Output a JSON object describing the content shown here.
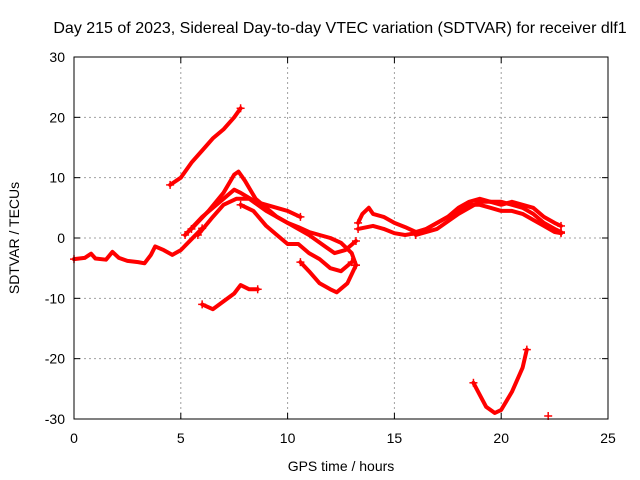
{
  "chart_data": {
    "type": "scatter",
    "title": "Day 215 of 2023, Sidereal Day-to-day VTEC variation (SDTVAR) for receiver dlf1",
    "xlabel": "GPS time / hours",
    "ylabel": "SDTVAR / TECUs",
    "xlim": [
      0,
      25
    ],
    "ylim": [
      -30,
      30
    ],
    "xticks": [
      0,
      5,
      10,
      15,
      20,
      25
    ],
    "xtick_labels": [
      "0",
      "5",
      "10",
      "15",
      "20",
      "25"
    ],
    "yticks": [
      -30,
      -20,
      -10,
      0,
      10,
      20,
      30
    ],
    "ytick_labels": [
      "-30",
      "-20",
      "-10",
      "0",
      "10",
      "20",
      "30"
    ],
    "grid": true,
    "colors": {
      "series": "#ff0000",
      "grid": "#a0a0a0",
      "axis": "#000000"
    },
    "series": [
      {
        "name": "track-baseline",
        "points": [
          [
            0,
            -3.5
          ],
          [
            0.5,
            -3.3
          ],
          [
            0.8,
            -2.6
          ],
          [
            1.0,
            -3.4
          ],
          [
            1.5,
            -3.6
          ],
          [
            1.8,
            -2.3
          ],
          [
            2.1,
            -3.3
          ],
          [
            2.5,
            -3.8
          ],
          [
            3.0,
            -4.0
          ],
          [
            3.3,
            -4.2
          ],
          [
            3.6,
            -2.8
          ],
          [
            3.8,
            -1.4
          ],
          [
            4.2,
            -2.0
          ],
          [
            4.6,
            -2.8
          ],
          [
            5.0,
            -2.0
          ],
          [
            5.5,
            -0.2
          ],
          [
            6.0,
            1.6
          ]
        ]
      },
      {
        "name": "track-upper-a",
        "points": [
          [
            5.2,
            0.5
          ],
          [
            6.0,
            3.5
          ],
          [
            7.0,
            6.5
          ],
          [
            7.5,
            8.0
          ],
          [
            7.8,
            7.5
          ],
          [
            8.5,
            6.0
          ],
          [
            9.0,
            5.5
          ],
          [
            10.0,
            4.5
          ],
          [
            10.6,
            3.5
          ]
        ]
      },
      {
        "name": "track-upper-b",
        "points": [
          [
            5.5,
            1.5
          ],
          [
            6.3,
            4.5
          ],
          [
            7.0,
            7.5
          ],
          [
            7.5,
            10.5
          ],
          [
            7.7,
            11.0
          ],
          [
            8.0,
            9.5
          ],
          [
            8.5,
            6.5
          ],
          [
            9.0,
            5.0
          ],
          [
            9.5,
            3.5
          ],
          [
            10.0,
            2.5
          ],
          [
            10.5,
            1.8
          ],
          [
            11.0,
            1.0
          ],
          [
            11.5,
            0.5
          ],
          [
            12.0,
            0
          ],
          [
            12.5,
            -0.8
          ],
          [
            13.0,
            -2.5
          ],
          [
            13.2,
            -4.5
          ]
        ]
      },
      {
        "name": "track-upper-c",
        "points": [
          [
            5.8,
            0.5
          ],
          [
            6.5,
            3.5
          ],
          [
            7.0,
            5.5
          ],
          [
            7.6,
            6.5
          ],
          [
            8.2,
            6.5
          ],
          [
            9.0,
            4.5
          ],
          [
            10.0,
            2.5
          ],
          [
            11.0,
            0.5
          ],
          [
            11.8,
            -1.5
          ],
          [
            12.2,
            -2.5
          ],
          [
            12.7,
            -2.0
          ],
          [
            13.2,
            -0.5
          ]
        ]
      },
      {
        "name": "track-dip-a",
        "points": [
          [
            7.8,
            5.5
          ],
          [
            8.4,
            4.5
          ],
          [
            9.0,
            2.0
          ],
          [
            9.5,
            0.5
          ],
          [
            10.0,
            -1.0
          ],
          [
            10.5,
            -1.0
          ],
          [
            11.0,
            -2.5
          ],
          [
            11.5,
            -3.5
          ],
          [
            12.0,
            -5.0
          ],
          [
            12.5,
            -5.5
          ],
          [
            13.0,
            -4.0
          ]
        ]
      },
      {
        "name": "track-dip-b",
        "points": [
          [
            10.6,
            -4.0
          ],
          [
            11.0,
            -5.5
          ],
          [
            11.5,
            -7.5
          ],
          [
            12.0,
            -8.5
          ],
          [
            12.3,
            -9.0
          ],
          [
            12.8,
            -7.5
          ],
          [
            13.2,
            -4.5
          ]
        ]
      },
      {
        "name": "track-high",
        "points": [
          [
            4.5,
            8.8
          ],
          [
            5.0,
            10.0
          ],
          [
            5.5,
            12.5
          ],
          [
            6.0,
            14.5
          ],
          [
            6.5,
            16.5
          ],
          [
            7.0,
            18.0
          ],
          [
            7.5,
            20.0
          ],
          [
            7.8,
            21.5
          ]
        ]
      },
      {
        "name": "track-low-morning",
        "points": [
          [
            6.0,
            -11.0
          ],
          [
            6.5,
            -11.8
          ],
          [
            7.0,
            -10.5
          ],
          [
            7.5,
            -9.2
          ],
          [
            7.8,
            -7.8
          ],
          [
            8.2,
            -8.5
          ],
          [
            8.6,
            -8.5
          ]
        ]
      },
      {
        "name": "track-evening-a",
        "points": [
          [
            13.3,
            2.5
          ],
          [
            13.5,
            4.0
          ],
          [
            13.8,
            5.0
          ],
          [
            14.0,
            4.0
          ],
          [
            14.5,
            3.5
          ],
          [
            15.0,
            2.5
          ],
          [
            15.5,
            1.8
          ],
          [
            16.0,
            1.0
          ],
          [
            16.5,
            1.5
          ],
          [
            17.0,
            2.5
          ],
          [
            17.5,
            3.5
          ],
          [
            18.0,
            5.0
          ],
          [
            18.5,
            6.0
          ],
          [
            19.0,
            6.5
          ],
          [
            19.5,
            6.0
          ],
          [
            20.0,
            5.5
          ],
          [
            20.5,
            6.0
          ],
          [
            21.0,
            5.5
          ],
          [
            21.5,
            5.0
          ],
          [
            22.0,
            3.5
          ],
          [
            22.5,
            2.5
          ],
          [
            22.8,
            2.0
          ]
        ]
      },
      {
        "name": "track-evening-b",
        "points": [
          [
            13.3,
            1.5
          ],
          [
            14.0,
            2.0
          ],
          [
            14.5,
            1.5
          ],
          [
            15.0,
            0.8
          ],
          [
            15.5,
            0.5
          ],
          [
            16.0,
            0.8
          ],
          [
            16.5,
            1.5
          ],
          [
            17.0,
            2.5
          ],
          [
            17.5,
            3.5
          ],
          [
            18.0,
            4.5
          ],
          [
            18.5,
            5.5
          ],
          [
            19.0,
            5.5
          ],
          [
            19.5,
            5.0
          ],
          [
            20.0,
            4.5
          ],
          [
            20.5,
            4.5
          ],
          [
            21.0,
            4.0
          ],
          [
            21.5,
            3.0
          ],
          [
            22.0,
            2.0
          ],
          [
            22.5,
            1.0
          ],
          [
            22.8,
            0.8
          ]
        ]
      },
      {
        "name": "track-evening-c",
        "points": [
          [
            16.0,
            0.5
          ],
          [
            17.0,
            1.5
          ],
          [
            18.0,
            4.0
          ],
          [
            19.0,
            6.0
          ],
          [
            20.0,
            6.0
          ],
          [
            21.0,
            5.0
          ],
          [
            21.5,
            4.0
          ],
          [
            22.0,
            2.5
          ],
          [
            22.5,
            1.5
          ],
          [
            22.8,
            1.0
          ]
        ]
      },
      {
        "name": "track-late-low",
        "points": [
          [
            18.7,
            -24.0
          ],
          [
            19.0,
            -26.0
          ],
          [
            19.3,
            -28.0
          ],
          [
            19.7,
            -29.0
          ],
          [
            20.0,
            -28.5
          ],
          [
            20.5,
            -25.5
          ],
          [
            21.0,
            -21.5
          ],
          [
            21.2,
            -18.5
          ]
        ]
      }
    ],
    "outliers": [
      [
        22.2,
        -29.5
      ]
    ]
  }
}
